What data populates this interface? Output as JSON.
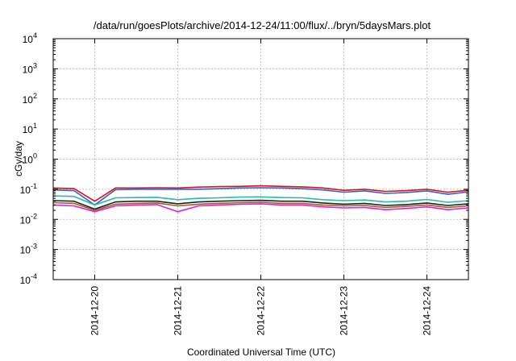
{
  "chart_data": {
    "type": "line",
    "title": "/data/run/goesPlots/archive/2014-12-24/11:00/flux/../bryn/5daysMars.plot",
    "xlabel": "Coordinated Universal Time (UTC)",
    "ylabel": "cGy/day",
    "yscale": "log",
    "ylim": [
      0.0001,
      10000
    ],
    "xlim": [
      "2014-12-19T12:00",
      "2014-12-24T12:00"
    ],
    "grid": true,
    "legend": "none",
    "y_ticks": [
      {
        "base": "10",
        "exp": "-4"
      },
      {
        "base": "10",
        "exp": "-3"
      },
      {
        "base": "10",
        "exp": "-2"
      },
      {
        "base": "10",
        "exp": "-1"
      },
      {
        "base": "10",
        "exp": "0"
      },
      {
        "base": "10",
        "exp": "1"
      },
      {
        "base": "10",
        "exp": "2"
      },
      {
        "base": "10",
        "exp": "3"
      },
      {
        "base": "10",
        "exp": "4"
      }
    ],
    "x_ticks": [
      "2014-12-20",
      "2014-12-21",
      "2014-12-22",
      "2014-12-23",
      "2014-12-24"
    ],
    "x": [
      "2014-12-19T12:00",
      "2014-12-19T18:00",
      "2014-12-20T00:00",
      "2014-12-20T06:00",
      "2014-12-20T12:00",
      "2014-12-20T18:00",
      "2014-12-21T00:00",
      "2014-12-21T06:00",
      "2014-12-21T12:00",
      "2014-12-21T18:00",
      "2014-12-22T00:00",
      "2014-12-22T06:00",
      "2014-12-22T12:00",
      "2014-12-22T18:00",
      "2014-12-23T00:00",
      "2014-12-23T06:00",
      "2014-12-23T12:00",
      "2014-12-23T18:00",
      "2014-12-24T00:00",
      "2014-12-24T06:00",
      "2014-12-24T12:00"
    ],
    "series": [
      {
        "color": "#e01010",
        "values": [
          0.11,
          0.105,
          0.04,
          0.11,
          0.11,
          0.112,
          0.11,
          0.118,
          0.122,
          0.125,
          0.13,
          0.125,
          0.12,
          0.11,
          0.092,
          0.1,
          0.085,
          0.09,
          0.1,
          0.08,
          0.093
        ]
      },
      {
        "color": "#3060e0",
        "values": [
          0.095,
          0.09,
          0.03,
          0.097,
          0.1,
          0.1,
          0.1,
          0.1,
          0.105,
          0.11,
          0.112,
          0.11,
          0.105,
          0.095,
          0.08,
          0.088,
          0.073,
          0.078,
          0.088,
          0.068,
          0.082
        ]
      },
      {
        "color": "#20c0a0",
        "values": [
          0.06,
          0.058,
          0.03,
          0.052,
          0.053,
          0.054,
          0.045,
          0.05,
          0.052,
          0.055,
          0.056,
          0.053,
          0.052,
          0.045,
          0.042,
          0.044,
          0.038,
          0.04,
          0.046,
          0.037,
          0.042
        ]
      },
      {
        "color": "#202020",
        "values": [
          0.042,
          0.04,
          0.022,
          0.038,
          0.04,
          0.04,
          0.033,
          0.038,
          0.04,
          0.042,
          0.043,
          0.04,
          0.04,
          0.035,
          0.032,
          0.034,
          0.029,
          0.031,
          0.035,
          0.029,
          0.033
        ]
      },
      {
        "color": "#a06020",
        "values": [
          0.036,
          0.034,
          0.02,
          0.032,
          0.034,
          0.035,
          0.028,
          0.032,
          0.034,
          0.036,
          0.037,
          0.034,
          0.034,
          0.03,
          0.028,
          0.029,
          0.025,
          0.027,
          0.03,
          0.025,
          0.028
        ]
      },
      {
        "color": "#e020e0",
        "values": [
          0.03,
          0.028,
          0.018,
          0.028,
          0.03,
          0.031,
          0.018,
          0.028,
          0.03,
          0.032,
          0.033,
          0.03,
          0.03,
          0.026,
          0.024,
          0.025,
          0.021,
          0.023,
          0.026,
          0.021,
          0.024
        ]
      }
    ]
  }
}
